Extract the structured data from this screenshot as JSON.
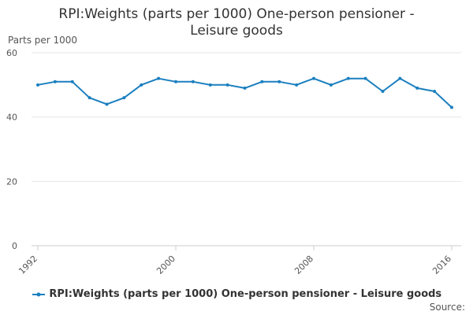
{
  "chart_data": {
    "type": "line",
    "title": "RPI:Weights (parts per 1000) One-person pensioner - Leisure goods",
    "title_lines": [
      "RPI:Weights (parts per 1000) One-person pensioner -",
      "Leisure goods"
    ],
    "ylabel": "Parts per 1000",
    "xlabel": "",
    "source_label": "Source:",
    "ylim": [
      0,
      60
    ],
    "yticks": [
      0,
      20,
      40,
      60
    ],
    "xlim": [
      1992,
      2016
    ],
    "xticks": [
      1992,
      2000,
      2008,
      2016
    ],
    "grid": true,
    "legend_position": "bottom",
    "series": [
      {
        "name": "RPI:Weights (parts per 1000) One-person pensioner - Leisure goods",
        "color": "#1a7fbf",
        "x": [
          1992,
          1993,
          1994,
          1995,
          1996,
          1997,
          1998,
          1999,
          2000,
          2001,
          2002,
          2003,
          2004,
          2005,
          2006,
          2007,
          2008,
          2009,
          2010,
          2011,
          2012,
          2013,
          2014,
          2015,
          2016
        ],
        "values": [
          50,
          51,
          51,
          46,
          44,
          46,
          50,
          52,
          51,
          51,
          50,
          50,
          49,
          51,
          51,
          50,
          52,
          50,
          52,
          52,
          48,
          52,
          49,
          48,
          43
        ]
      }
    ]
  }
}
